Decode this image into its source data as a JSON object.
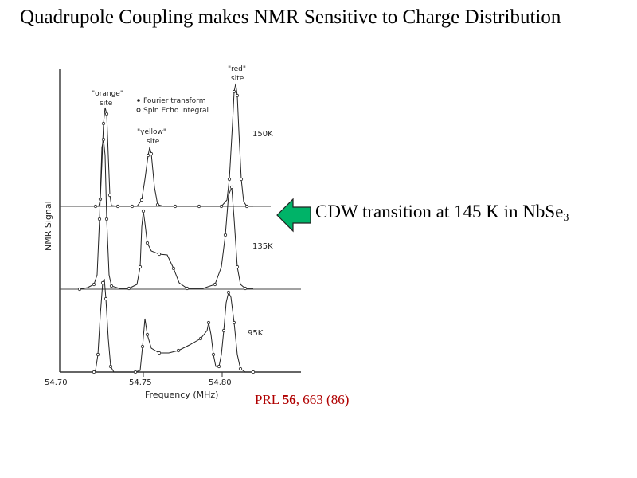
{
  "slide": {
    "title": "Quadrupole Coupling makes NMR Sensitive to Charge Distribution"
  },
  "figure": {
    "y_label": "NMR Signal",
    "x_label": "Frequency (MHz)",
    "x_ticks": [
      "54.70",
      "54.75",
      "54.80"
    ],
    "legend": {
      "fourier": "Fourier transform",
      "spin_echo": "Spin Echo Integral"
    },
    "site_labels": {
      "orange_1": "\"orange\"",
      "orange_2": "site",
      "yellow_1": "\"yellow\"",
      "yellow_2": "site",
      "red_1": "\"red\"",
      "red_2": "site"
    },
    "temperatures": [
      "150K",
      "135K",
      "95K"
    ]
  },
  "callout": {
    "text": "CDW transition at 145 K in NbSe",
    "subscript": "3",
    "arrow_color": "#00b368"
  },
  "citation": {
    "prefix": "PRL ",
    "volume": "56",
    "suffix": ", 663 (86)"
  }
}
